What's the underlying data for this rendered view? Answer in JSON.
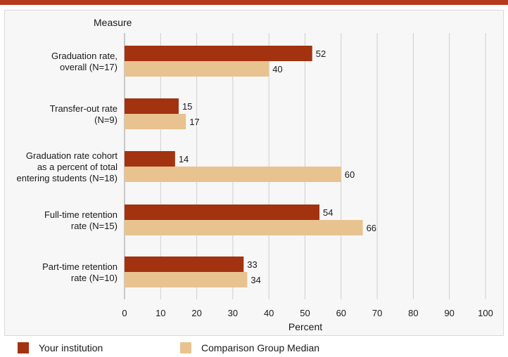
{
  "colors": {
    "top_bar": "#b5391c",
    "institution": "#a33210",
    "comparison": "#e8c390",
    "grid": "#cfcfcf",
    "text": "#1a1a1a"
  },
  "chart_data": {
    "type": "bar",
    "orientation": "horizontal",
    "category_axis_title": "Measure",
    "xlabel": "Percent",
    "xlim": [
      0,
      100
    ],
    "xticks": [
      0,
      10,
      20,
      30,
      40,
      50,
      60,
      70,
      80,
      90,
      100
    ],
    "grid": true,
    "legend_position": "bottom",
    "categories": [
      [
        "Graduation rate,",
        "overall (N=17)"
      ],
      [
        "Transfer-out rate",
        "(N=9)"
      ],
      [
        "Graduation rate cohort",
        "as a percent of total",
        "entering students (N=18)"
      ],
      [
        "Full-time retention",
        "rate (N=15)"
      ],
      [
        "Part-time retention",
        "rate (N=10)"
      ]
    ],
    "series": [
      {
        "name": "Your institution",
        "values": [
          52,
          15,
          14,
          54,
          33
        ]
      },
      {
        "name": "Comparison Group Median",
        "values": [
          40,
          17,
          60,
          66,
          34
        ]
      }
    ]
  }
}
